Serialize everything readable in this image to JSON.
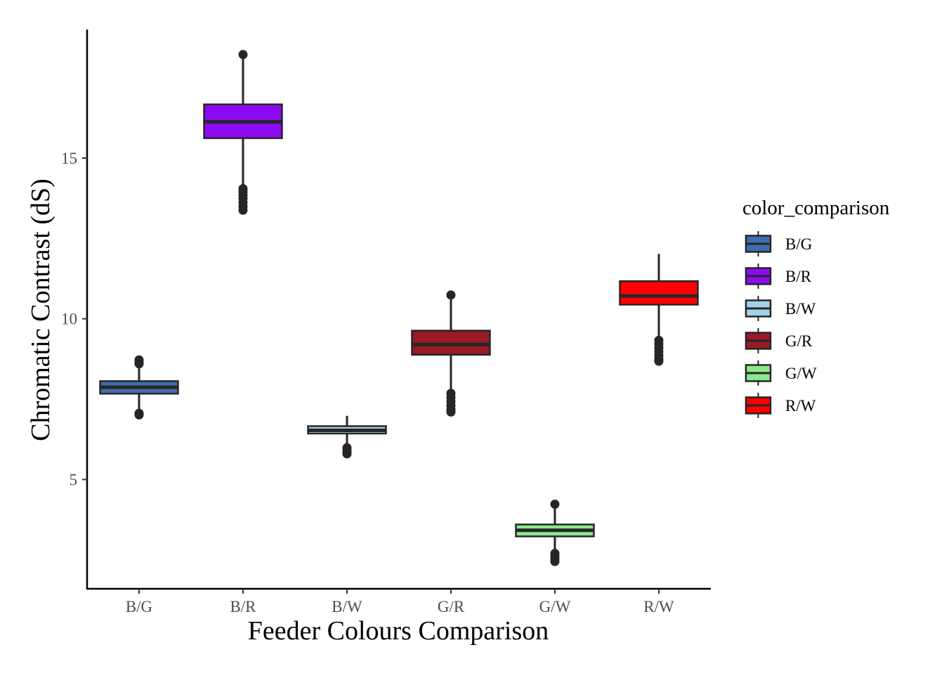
{
  "chart_data": {
    "type": "boxplot",
    "title": "",
    "xlabel": "Feeder Colours Comparison",
    "ylabel": "Chromatic Contrast (dS)",
    "ylim": [
      1.6,
      19.0
    ],
    "yticks": [
      5,
      10,
      15
    ],
    "grid": false,
    "legend": {
      "title": "color_comparison",
      "position": "right"
    },
    "categories": [
      "B/G",
      "B/R",
      "B/W",
      "G/R",
      "G/W",
      "R/W"
    ],
    "series": [
      {
        "name": "B/G",
        "color": "#3D6EAE",
        "whisker_low": 7.13,
        "q1": 7.67,
        "median": 7.87,
        "q3": 8.06,
        "whisker_high": 8.53,
        "outliers": [
          8.6,
          8.66,
          8.72,
          7.06,
          7.01
        ]
      },
      {
        "name": "B/R",
        "color": "#8B0AF2",
        "whisker_low": 14.15,
        "q1": 15.62,
        "median": 16.13,
        "q3": 16.67,
        "whisker_high": 18.1,
        "outliers": [
          18.22,
          14.05,
          13.95,
          13.85,
          13.75,
          13.62,
          13.5,
          13.38
        ]
      },
      {
        "name": "B/W",
        "color": "#A3D1E6",
        "whisker_low": 6.08,
        "q1": 6.43,
        "median": 6.53,
        "q3": 6.66,
        "whisker_high": 6.98,
        "outliers": [
          5.99,
          5.93,
          5.87,
          5.8
        ]
      },
      {
        "name": "G/R",
        "color": "#9A1A26",
        "whisker_low": 7.8,
        "q1": 8.88,
        "median": 9.2,
        "q3": 9.63,
        "whisker_high": 10.62,
        "outliers": [
          10.74,
          7.68,
          7.55,
          7.43,
          7.3,
          7.18,
          7.1
        ]
      },
      {
        "name": "G/W",
        "color": "#8BE88B",
        "whisker_low": 2.82,
        "q1": 3.23,
        "median": 3.42,
        "q3": 3.6,
        "whisker_high": 4.15,
        "outliers": [
          4.23,
          2.7,
          2.62,
          2.54,
          2.45
        ]
      },
      {
        "name": "R/W",
        "color": "#FF0000",
        "whisker_low": 9.42,
        "q1": 10.44,
        "median": 10.71,
        "q3": 11.17,
        "whisker_high": 12.02,
        "outliers": [
          9.33,
          9.22,
          9.1,
          8.98,
          8.86,
          8.75,
          8.68
        ]
      }
    ]
  }
}
